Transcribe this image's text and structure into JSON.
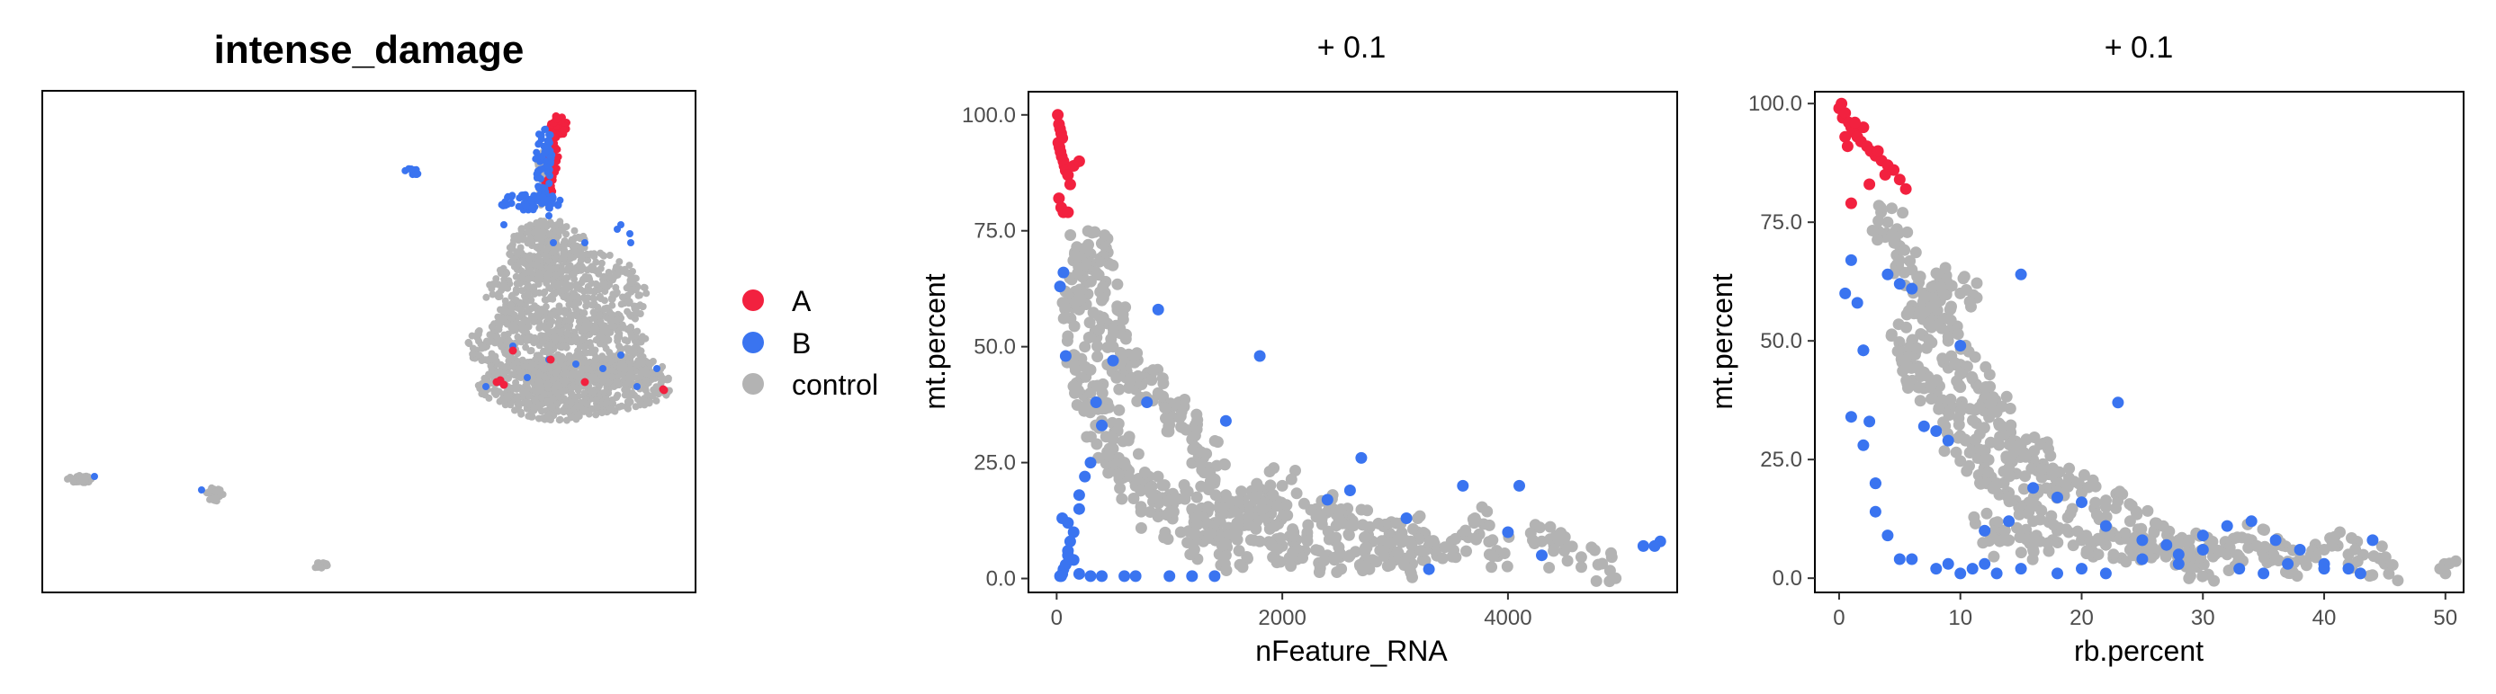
{
  "colors": {
    "A": "#F2213F",
    "B": "#3A74F0",
    "control": "#B3B3B3"
  },
  "legend": {
    "items": [
      {
        "label": "A",
        "color": "#F2213F"
      },
      {
        "label": "B",
        "color": "#3A74F0"
      },
      {
        "label": "control",
        "color": "#B3B3B3"
      }
    ]
  },
  "chart_data": [
    {
      "type": "scatter",
      "title": "intense_damage",
      "xlabel": "",
      "ylabel": "",
      "axes_hidden": true,
      "grid": false,
      "legend": "right",
      "series": [
        {
          "name": "A"
        },
        {
          "name": "B"
        },
        {
          "name": "control"
        }
      ]
    },
    {
      "type": "scatter",
      "title": "+ 0.1",
      "xlabel": "nFeature_RNA",
      "ylabel": "mt.percent",
      "xlim": [
        -250,
        5500
      ],
      "ylim": [
        -3,
        105
      ],
      "xticks": [
        0,
        2000,
        4000
      ],
      "xtick_labels": [
        "0",
        "2000",
        "4000"
      ],
      "yticks": [
        0,
        25,
        50,
        75,
        100
      ],
      "ytick_labels": [
        "0.0",
        "25.0",
        "50.0",
        "75.0",
        "100.0"
      ],
      "grid": false,
      "series": [
        {
          "name": "A",
          "x": [
            10,
            20,
            30,
            40,
            50,
            15,
            25,
            35,
            45,
            60,
            70,
            80,
            100,
            120,
            20,
            40,
            60,
            100,
            150,
            200
          ],
          "y": [
            100,
            98,
            97,
            96,
            95,
            94,
            93,
            92,
            91,
            90,
            89,
            88,
            87,
            85,
            82,
            80,
            79,
            79,
            89,
            90
          ]
        },
        {
          "name": "B",
          "x": [
            5350,
            5300,
            5200,
            4300,
            4100,
            4000,
            3600,
            3100,
            2700,
            2600,
            2400,
            1800,
            900,
            800,
            500,
            400,
            350,
            300,
            250,
            200,
            200,
            150,
            120,
            100,
            100,
            80,
            60,
            50,
            40,
            30,
            50,
            30,
            60,
            80,
            100,
            150,
            200,
            300,
            400,
            600,
            700,
            1000,
            1200,
            1400,
            1500,
            3300
          ],
          "y": [
            8,
            7,
            7,
            5,
            20,
            10,
            20,
            13,
            26,
            19,
            17,
            48,
            58,
            38,
            47,
            33,
            38,
            25,
            22,
            18,
            15,
            10,
            8,
            6,
            5,
            3,
            2,
            1,
            0.5,
            0.5,
            13,
            63,
            66,
            48,
            12,
            4,
            1,
            0.5,
            0.5,
            0.5,
            0.5,
            0.5,
            0.5,
            0.5,
            34,
            2
          ]
        },
        {
          "name": "control",
          "x": [
            4800,
            4500,
            4300,
            3900,
            3700,
            3500,
            3300,
            3200,
            3000,
            2800,
            2600,
            2500,
            2300,
            2100,
            2000,
            1900,
            1800,
            1700,
            1600,
            1500,
            1400,
            1300,
            1200,
            1100,
            1000,
            900,
            800,
            700,
            600,
            500,
            450,
            400,
            350,
            300,
            280,
            250,
            220,
            200,
            300,
            400,
            500,
            600,
            800,
            1000,
            1200,
            1400,
            1600,
            1800,
            2000,
            2200,
            2400,
            2600,
            2800,
            3000,
            1500,
            1300,
            1100,
            900,
            700,
            500,
            400,
            300,
            250
          ],
          "y": [
            3,
            6,
            8,
            6,
            12,
            8,
            7,
            10,
            9,
            8,
            13,
            12,
            15,
            10,
            20,
            14,
            17,
            15,
            12,
            18,
            21,
            26,
            30,
            35,
            36,
            40,
            44,
            42,
            46,
            50,
            55,
            60,
            66,
            70,
            72,
            68,
            62,
            58,
            45,
            38,
            30,
            25,
            20,
            18,
            15,
            12,
            10,
            8,
            7,
            6,
            5,
            5,
            4,
            4,
            5,
            8,
            10,
            14,
            20,
            28,
            34,
            40,
            50
          ]
        }
      ]
    },
    {
      "type": "scatter",
      "title": "+ 0.1",
      "xlabel": "rb.percent",
      "ylabel": "mt.percent",
      "xlim": [
        -2,
        51.5
      ],
      "ylim": [
        -3,
        102.5
      ],
      "xticks": [
        0,
        10,
        20,
        30,
        40,
        50
      ],
      "xtick_labels": [
        "0",
        "10",
        "20",
        "30",
        "40",
        "50"
      ],
      "yticks": [
        0,
        25,
        50,
        75,
        100
      ],
      "ytick_labels": [
        "0.0",
        "25.0",
        "50.0",
        "75.0",
        "100.0"
      ],
      "grid": false,
      "series": [
        {
          "name": "A",
          "x": [
            0,
            0.3,
            0.5,
            0.8,
            1,
            1.2,
            1.5,
            1.8,
            2,
            2.3,
            2.6,
            3,
            3.5,
            4,
            4.5,
            5,
            5.5,
            2.5,
            1,
            0.5,
            0.2,
            0.7,
            1.3,
            3.2,
            3.8
          ],
          "y": [
            99,
            97,
            98,
            96,
            95,
            94,
            93,
            92,
            95,
            91,
            90,
            89,
            88,
            87,
            86,
            84,
            82,
            83,
            79,
            93,
            100,
            91,
            96,
            90,
            85
          ]
        },
        {
          "name": "B",
          "x": [
            0.5,
            1,
            1.5,
            2,
            2.5,
            3,
            4,
            5,
            6,
            7,
            8,
            9,
            10,
            12,
            14,
            15,
            16,
            18,
            20,
            22,
            23,
            25,
            27,
            28,
            30,
            32,
            34,
            36,
            38,
            40,
            42,
            44,
            2,
            3,
            5,
            8,
            10,
            12,
            15,
            18,
            20,
            22,
            25,
            28,
            30,
            33,
            35,
            37,
            40,
            43,
            1,
            2,
            3,
            4,
            6,
            9,
            11,
            13
          ],
          "y": [
            60,
            67,
            58,
            48,
            33,
            20,
            64,
            62,
            61,
            32,
            31,
            29,
            49,
            10,
            12,
            64,
            19,
            17,
            16,
            11,
            37,
            8,
            7,
            5,
            9,
            11,
            12,
            8,
            6,
            3,
            2,
            8,
            48,
            20,
            4,
            2,
            1,
            3,
            2,
            1,
            2,
            1,
            4,
            3,
            6,
            2,
            1,
            3,
            2,
            1,
            34,
            28,
            14,
            9,
            4,
            3,
            2,
            1
          ]
        },
        {
          "name": "control",
          "x": [
            50,
            45,
            42,
            40,
            38,
            36,
            34,
            32,
            30,
            28,
            26,
            24,
            22,
            20,
            18,
            17,
            16,
            15,
            14,
            13,
            12,
            11,
            10,
            9,
            8,
            7,
            6,
            5,
            4,
            6,
            7,
            8,
            9,
            10,
            11,
            12,
            13,
            14,
            15,
            16,
            18,
            20,
            22,
            24,
            26,
            28,
            30,
            10,
            9,
            8,
            7,
            6,
            5,
            12,
            14,
            16
          ],
          "y": [
            1,
            3,
            5,
            6,
            4,
            7,
            8,
            5,
            6,
            8,
            10,
            12,
            15,
            18,
            20,
            22,
            25,
            28,
            30,
            35,
            38,
            42,
            45,
            50,
            55,
            60,
            65,
            70,
            75,
            45,
            40,
            38,
            35,
            30,
            28,
            25,
            20,
            18,
            15,
            12,
            10,
            8,
            7,
            6,
            5,
            4,
            3,
            60,
            62,
            58,
            56,
            50,
            48,
            10,
            8,
            6
          ]
        }
      ]
    }
  ]
}
